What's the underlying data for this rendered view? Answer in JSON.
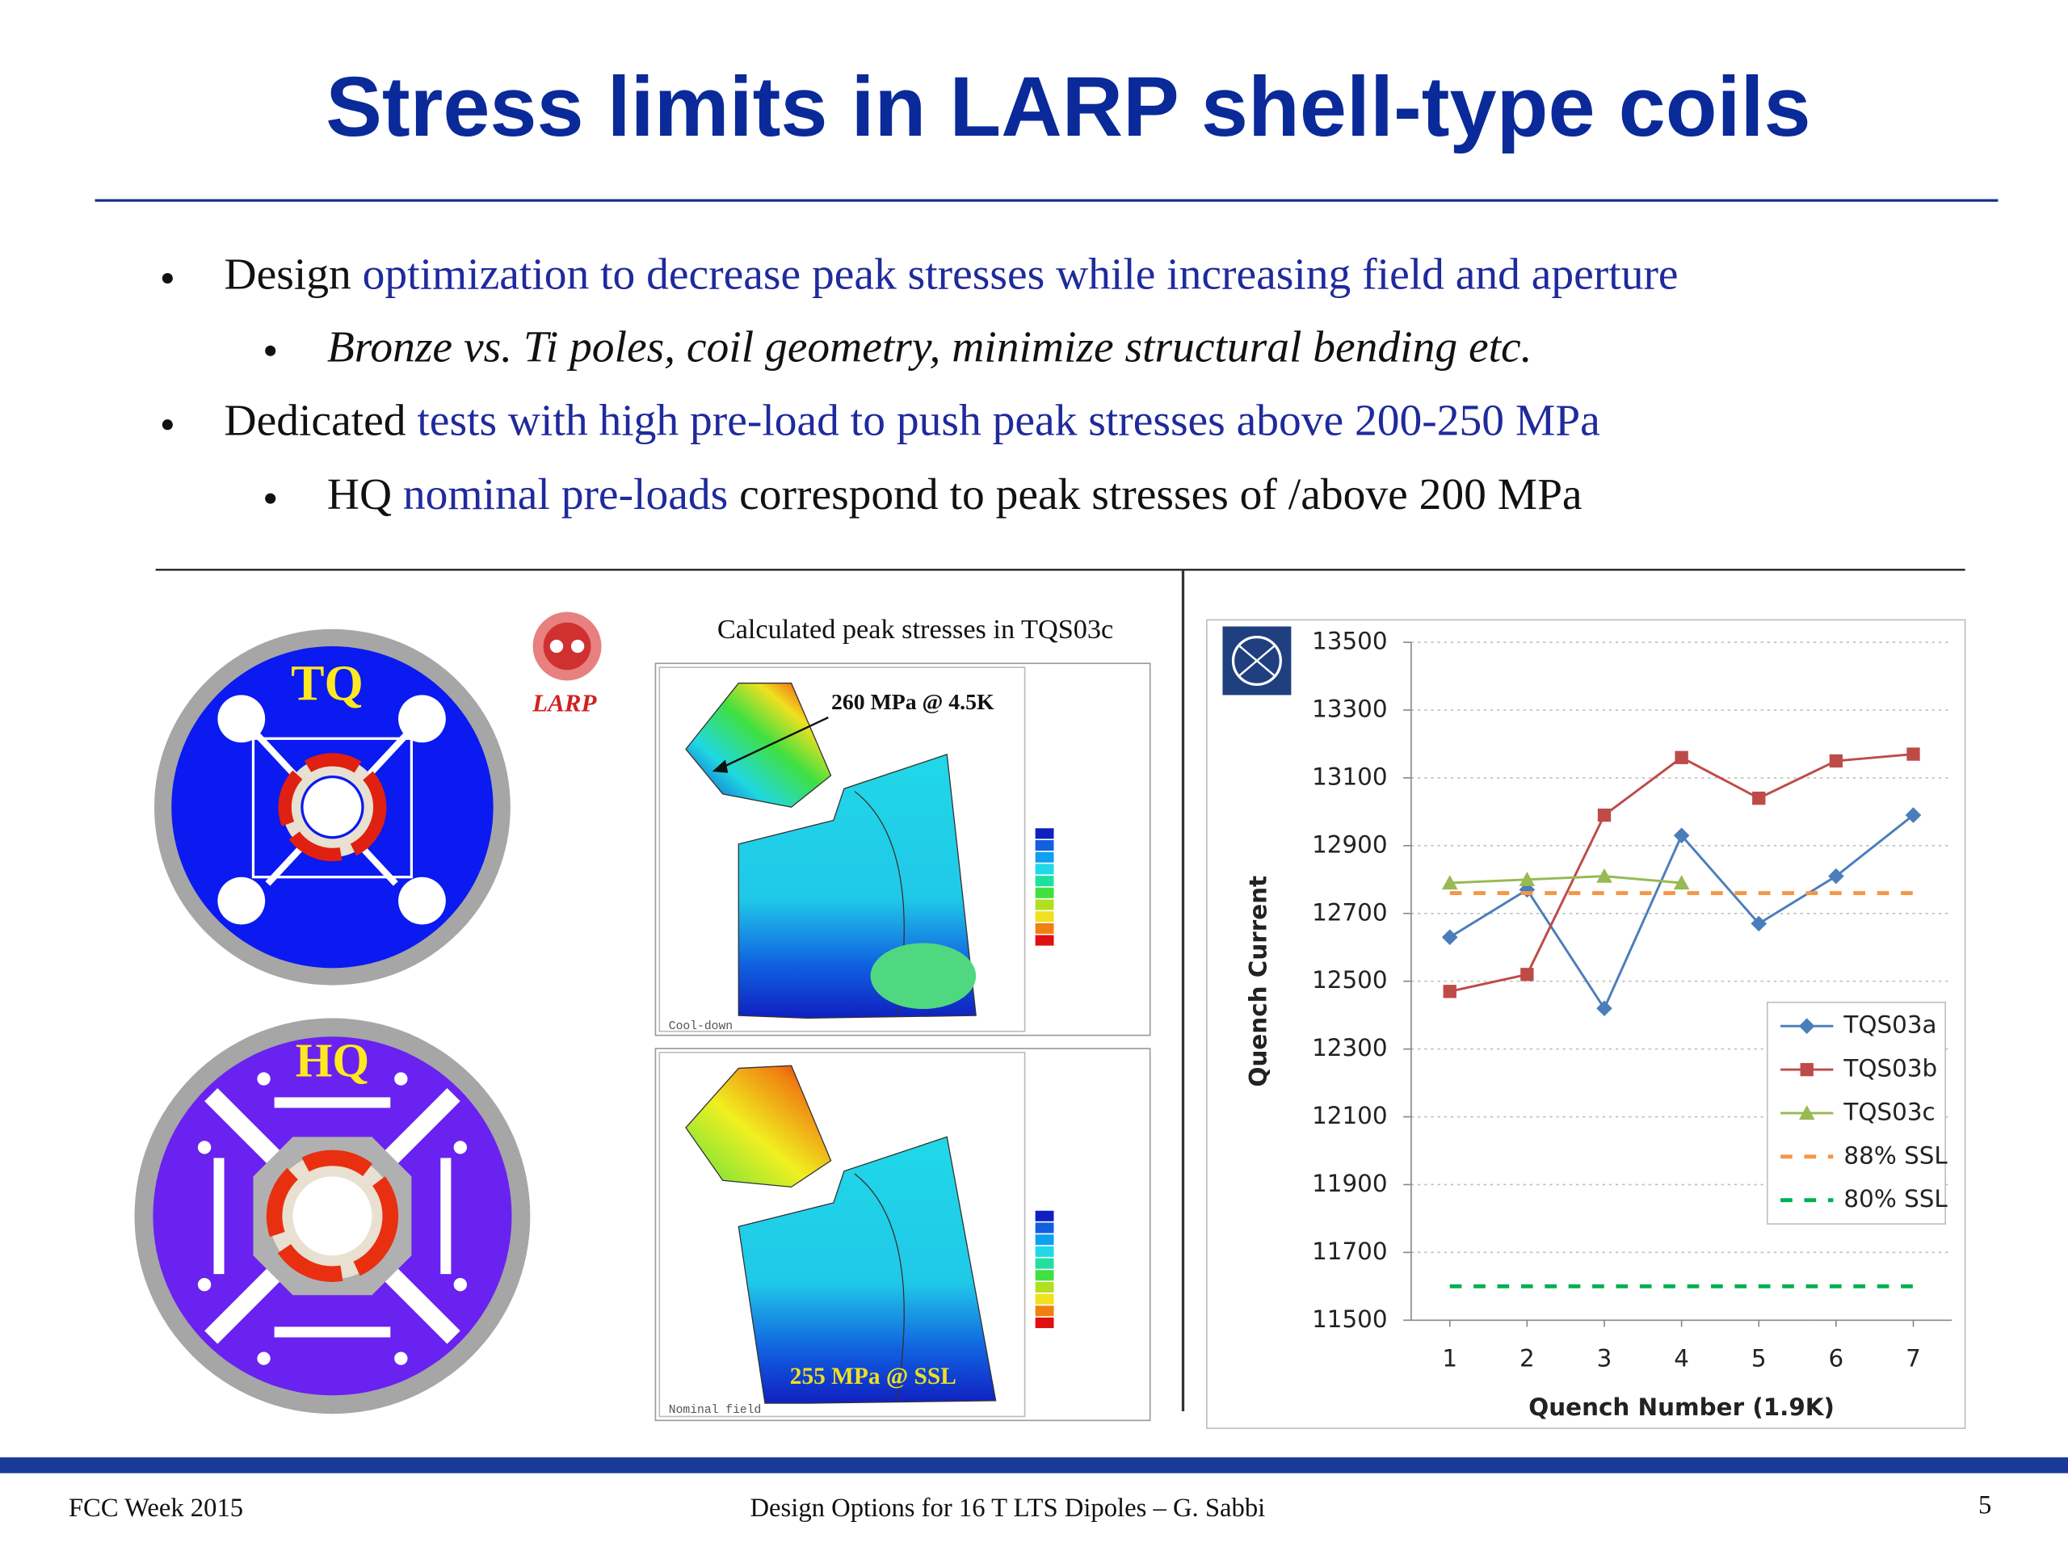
{
  "header": {
    "title": "Stress limits in LARP shell-type coils"
  },
  "bullets": [
    {
      "level": 1,
      "parts": [
        {
          "text": "Design "
        },
        {
          "text": "optimization to decrease peak stresses while increasing field and aperture",
          "color": "#1f2a9c"
        }
      ]
    },
    {
      "level": 2,
      "italic": true,
      "parts": [
        {
          "text": "Bronze vs. Ti poles, coil geometry, minimize structural bending etc."
        }
      ]
    },
    {
      "level": 1,
      "parts": [
        {
          "text": "Dedicated "
        },
        {
          "text": "tests with high pre-load to push peak stresses above 200-250 MPa",
          "color": "#1f2a9c"
        }
      ]
    },
    {
      "level": 2,
      "parts": [
        {
          "text": "HQ "
        },
        {
          "text": "nominal pre-loads",
          "color": "#1f2a9c"
        },
        {
          "text": " correspond to peak stresses of /above 200 MPa"
        }
      ]
    }
  ],
  "figures": {
    "tq_label": "TQ",
    "hq_label": "HQ",
    "larp_logo": "LARP",
    "fea_caption": "Calculated peak stresses in TQS03c",
    "fea_top_note": "260 MPa @ 4.5K",
    "fea_top_step": "Cool-down",
    "fea_bottom_note": "255 MPa @ SSL",
    "fea_bottom_step": "Nominal field"
  },
  "chart_data": {
    "type": "line",
    "x": [
      1,
      2,
      3,
      4,
      5,
      6,
      7
    ],
    "xlim": [
      0.5,
      7.5
    ],
    "xticks": [
      1,
      2,
      3,
      4,
      5,
      6,
      7
    ],
    "ylim": [
      11500,
      13500
    ],
    "yticks": [
      11500,
      11700,
      11900,
      12100,
      12300,
      12500,
      12700,
      12900,
      13100,
      13300,
      13500
    ],
    "xlabel": "Quench Number (1.9K)",
    "ylabel": "Quench Current",
    "grid": true,
    "legend": "right",
    "series": [
      {
        "name": "TQS03a",
        "color": "#4a7ebb",
        "marker": "diamond",
        "values": [
          12630,
          12770,
          12420,
          12930,
          12670,
          12810,
          12990
        ]
      },
      {
        "name": "TQS03b",
        "color": "#be4b48",
        "marker": "square",
        "values": [
          12470,
          12520,
          12990,
          13160,
          13040,
          13150,
          13170
        ]
      },
      {
        "name": "TQS03c",
        "color": "#98b954",
        "marker": "triangle",
        "values": [
          12790,
          12800,
          12810,
          12790,
          null,
          null,
          null
        ]
      },
      {
        "name": "88% SSL",
        "color": "#f79646",
        "dash": true,
        "values": [
          12760,
          12760,
          12760,
          12760,
          12760,
          12760,
          12760
        ]
      },
      {
        "name": "80% SSL",
        "color": "#00b050",
        "dash": true,
        "values": [
          11600,
          11600,
          11600,
          11600,
          11600,
          11600,
          11600
        ]
      }
    ]
  },
  "footer": {
    "left": "FCC Week 2015",
    "center": "Design Options for 16 T LTS Dipoles – G. Sabbi",
    "page": "5"
  }
}
